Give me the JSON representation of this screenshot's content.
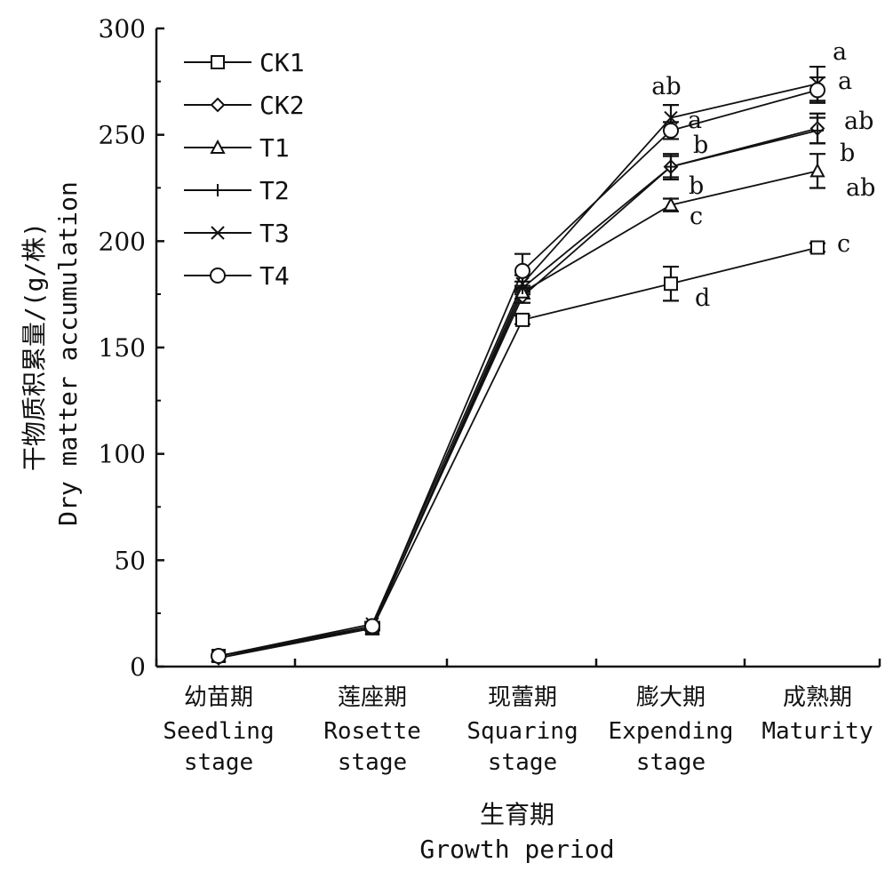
{
  "chart_data": {
    "type": "line",
    "categories": [
      {
        "cn": "幼苗期",
        "en": [
          "Seedling",
          "stage"
        ]
      },
      {
        "cn": "莲座期",
        "en": [
          "Rosette",
          "stage"
        ]
      },
      {
        "cn": "现蕾期",
        "en": [
          "Squaring",
          "stage"
        ]
      },
      {
        "cn": "膨大期",
        "en": [
          "Expending",
          "stage"
        ]
      },
      {
        "cn": "成熟期",
        "en": [
          "Maturity"
        ]
      }
    ],
    "xlabel_cn": "生育期",
    "xlabel_en": "Growth period",
    "ylabel_cn": "干物质积累量/(g/株)",
    "ylabel_en": "Dry matter accumulation",
    "ylim": [
      0,
      300
    ],
    "yticks": [
      "0",
      "50",
      "100",
      "150",
      "200",
      "250",
      "300"
    ],
    "legend_position": "top-left",
    "series": [
      {
        "name": "CK1",
        "marker": "square",
        "values": [
          5,
          18,
          163,
          180,
          197
        ],
        "errors": [
          0,
          1,
          2,
          8,
          2
        ],
        "letters": [
          "",
          "",
          "",
          "d",
          "c"
        ]
      },
      {
        "name": "CK2",
        "marker": "diamond",
        "values": [
          4,
          19,
          174,
          235,
          253
        ],
        "errors": [
          0,
          1,
          3,
          6,
          7
        ],
        "letters": [
          "",
          "",
          "",
          "b",
          "b"
        ]
      },
      {
        "name": "T1",
        "marker": "triangle",
        "values": [
          5,
          18,
          176,
          217,
          233
        ],
        "errors": [
          0,
          1,
          3,
          3,
          8
        ],
        "letters": [
          "",
          "",
          "",
          "c",
          "ab"
        ]
      },
      {
        "name": "T2",
        "marker": "plus",
        "values": [
          4,
          18,
          178,
          235,
          252
        ],
        "errors": [
          0,
          1,
          3,
          5,
          6
        ],
        "letters": [
          "",
          "",
          "",
          "b",
          "ab"
        ]
      },
      {
        "name": "T3",
        "marker": "x",
        "values": [
          5,
          20,
          180,
          258,
          274
        ],
        "errors": [
          0,
          1,
          4,
          6,
          8
        ],
        "letters": [
          "",
          "",
          "",
          "ab",
          "a"
        ]
      },
      {
        "name": "T4",
        "marker": "circle",
        "values": [
          5,
          19,
          186,
          252,
          271
        ],
        "errors": [
          0,
          1,
          8,
          4,
          6
        ],
        "letters": [
          "",
          "",
          "",
          "a",
          "a"
        ]
      }
    ]
  }
}
